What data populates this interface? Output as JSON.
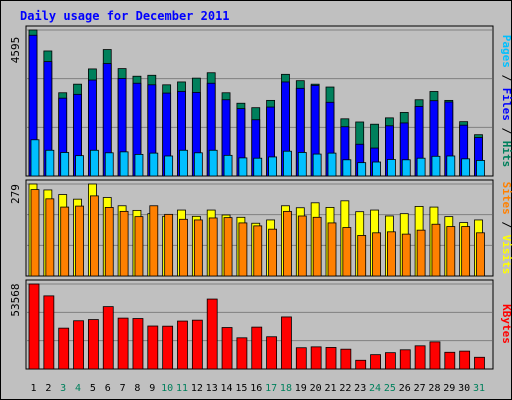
{
  "title": "Daily usage for December 2011",
  "colors": {
    "title": "#0000ff",
    "hits": "#00805c",
    "files": "#0000ff",
    "pages": "#00c0ff",
    "visits": "#ffff00",
    "sites": "#ff8000",
    "kbytes": "#ff0000",
    "weekend_label": "#00805c",
    "weekday_label": "#000000"
  },
  "chart_data": [
    {
      "type": "bar",
      "panel": "top",
      "max_label": "4595",
      "ylim": [
        0,
        4595
      ],
      "grid": true,
      "legend_placement": "right",
      "legend": [
        "Pages",
        "Files",
        "Hits"
      ],
      "categories": [
        "1",
        "2",
        "3",
        "4",
        "5",
        "6",
        "7",
        "8",
        "9",
        "10",
        "11",
        "12",
        "13",
        "14",
        "15",
        "16",
        "17",
        "18",
        "19",
        "20",
        "21",
        "22",
        "23",
        "24",
        "25",
        "26",
        "27",
        "28",
        "29",
        "30",
        "31"
      ],
      "series": [
        {
          "name": "Hits",
          "values": [
            4595,
            3935,
            2620,
            2890,
            3370,
            3980,
            3380,
            3140,
            3170,
            2870,
            2960,
            3080,
            3250,
            2620,
            2290,
            2150,
            2380,
            3200,
            3000,
            2890,
            2800,
            1800,
            1700,
            1630,
            1830,
            2000,
            2400,
            2660,
            2380,
            1710,
            1300
          ]
        },
        {
          "name": "Files",
          "values": [
            4430,
            3600,
            2450,
            2570,
            3020,
            3540,
            3070,
            2920,
            2870,
            2610,
            2660,
            2630,
            2920,
            2400,
            2120,
            1770,
            2170,
            2960,
            2760,
            2850,
            2320,
            1550,
            1000,
            880,
            1580,
            1670,
            2190,
            2370,
            2330,
            1600,
            1210
          ]
        },
        {
          "name": "Pages",
          "values": [
            1140,
            810,
            740,
            640,
            810,
            730,
            760,
            680,
            720,
            630,
            810,
            730,
            810,
            650,
            570,
            560,
            600,
            780,
            740,
            690,
            720,
            510,
            420,
            440,
            520,
            510,
            560,
            620,
            630,
            540,
            490
          ]
        }
      ]
    },
    {
      "type": "bar",
      "panel": "middle",
      "max_label": "279",
      "ylim": [
        0,
        279
      ],
      "grid": true,
      "legend_placement": "right",
      "legend": [
        "Sites",
        "Visits"
      ],
      "categories": [
        "1",
        "2",
        "3",
        "4",
        "5",
        "6",
        "7",
        "8",
        "9",
        "10",
        "11",
        "12",
        "13",
        "14",
        "15",
        "16",
        "17",
        "18",
        "19",
        "20",
        "21",
        "22",
        "23",
        "24",
        "25",
        "26",
        "27",
        "28",
        "29",
        "30",
        "31"
      ],
      "series": [
        {
          "name": "Visits",
          "values": [
            279,
            261,
            247,
            233,
            279,
            238,
            213,
            199,
            189,
            181,
            200,
            181,
            200,
            185,
            178,
            160,
            170,
            213,
            207,
            222,
            208,
            228,
            195,
            200,
            182,
            189,
            211,
            209,
            180,
            162,
            170
          ]
        },
        {
          "name": "Sites",
          "values": [
            262,
            234,
            209,
            212,
            243,
            208,
            196,
            180,
            213,
            187,
            172,
            170,
            176,
            177,
            161,
            152,
            142,
            196,
            182,
            178,
            161,
            147,
            123,
            131,
            134,
            127,
            139,
            157,
            150,
            150,
            131
          ]
        }
      ]
    },
    {
      "type": "bar",
      "panel": "bottom",
      "max_label": "53568",
      "ylim": [
        0,
        53568
      ],
      "grid": true,
      "legend_placement": "right",
      "legend": [
        "KBytes"
      ],
      "categories": [
        "1",
        "2",
        "3",
        "4",
        "5",
        "6",
        "7",
        "8",
        "9",
        "10",
        "11",
        "12",
        "13",
        "14",
        "15",
        "16",
        "17",
        "18",
        "19",
        "20",
        "21",
        "22",
        "23",
        "24",
        "25",
        "26",
        "27",
        "28",
        "29",
        "30",
        "31"
      ],
      "series": [
        {
          "name": "KBytes",
          "values": [
            53568,
            46090,
            25750,
            30410,
            31160,
            39310,
            32070,
            31810,
            27090,
            26990,
            30210,
            30780,
            44080,
            26140,
            19660,
            26400,
            20330,
            32810,
            13410,
            13960,
            13590,
            12490,
            5500,
            9040,
            10300,
            12110,
            14620,
            17090,
            10540,
            11270,
            7390
          ]
        }
      ]
    }
  ],
  "weekend_days": [
    3,
    4,
    10,
    11,
    17,
    18,
    24,
    25,
    31
  ]
}
